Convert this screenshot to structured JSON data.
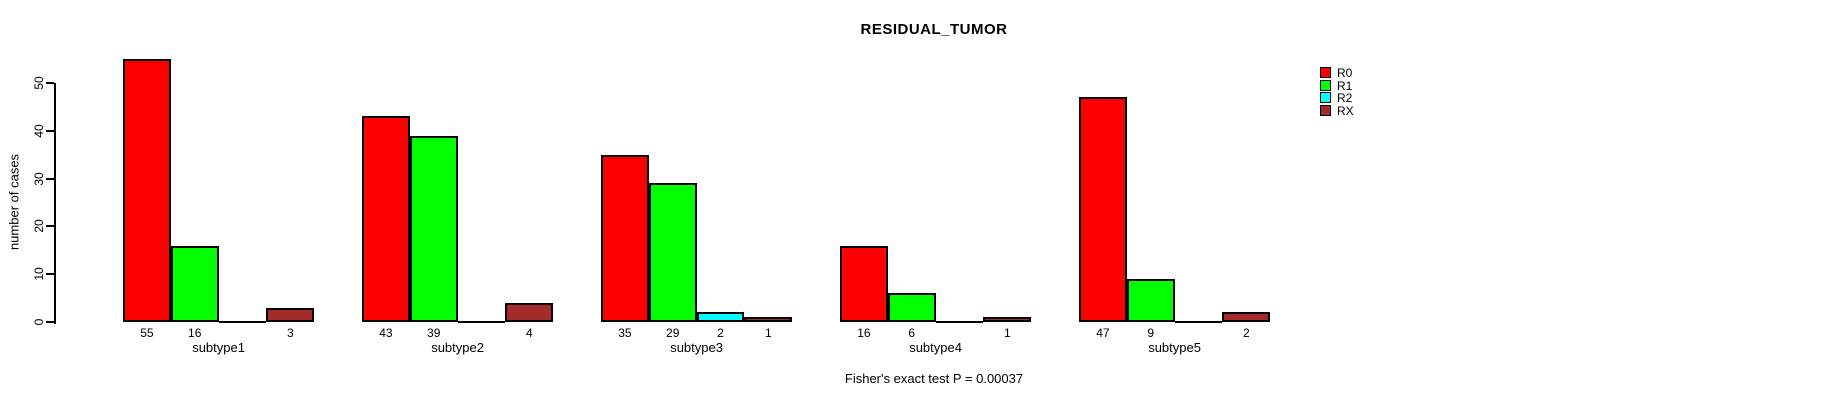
{
  "chart_data": {
    "type": "bar",
    "title": "RESIDUAL_TUMOR",
    "ylabel": "number of cases",
    "xlabel": "",
    "categories": [
      "subtype1",
      "subtype2",
      "subtype3",
      "subtype4",
      "subtype5"
    ],
    "series": [
      {
        "name": "R0",
        "color": "#ff0000",
        "values": [
          55,
          43,
          35,
          16,
          47
        ]
      },
      {
        "name": "R1",
        "color": "#00ff00",
        "values": [
          16,
          39,
          29,
          6,
          9
        ]
      },
      {
        "name": "R2",
        "color": "#00ffff",
        "values": [
          0,
          0,
          2,
          0,
          0
        ]
      },
      {
        "name": "RX",
        "color": "#a52a2a",
        "values": [
          3,
          4,
          1,
          1,
          2
        ]
      }
    ],
    "yticks": [
      0,
      10,
      20,
      30,
      40,
      50
    ],
    "ylim": [
      0,
      55
    ],
    "grid": false,
    "bar_value_labels": true,
    "legend_position": "top-right",
    "legend_entries": [
      "R0",
      "R1",
      "R2",
      "RX"
    ],
    "annotation": "Fisher's exact test P = 0.00037",
    "axis_color": "#000000",
    "background_color": "#ffffff"
  }
}
